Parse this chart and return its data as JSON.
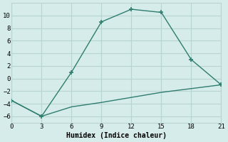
{
  "xlabel": "Humidex (Indice chaleur)",
  "line1_x": [
    0,
    3,
    6,
    9,
    12,
    15,
    18,
    21
  ],
  "line1_y": [
    -3.5,
    -6,
    1,
    9,
    11,
    10.5,
    3,
    -1
  ],
  "line2_x": [
    0,
    3,
    6,
    9,
    12,
    15,
    18,
    21
  ],
  "line2_y": [
    -3.5,
    -6,
    -4.5,
    -3.8,
    -3.0,
    -2.2,
    -1.6,
    -1
  ],
  "line_color": "#2e7d6e",
  "marker": "+",
  "markersize": 5,
  "markeredgewidth": 1.2,
  "linewidth": 1.0,
  "bg_color": "#d6ecea",
  "grid_color": "#b8d4d0",
  "xlim": [
    0,
    21
  ],
  "ylim": [
    -7,
    12
  ],
  "xticks": [
    0,
    3,
    6,
    9,
    12,
    15,
    18,
    21
  ],
  "yticks": [
    -6,
    -4,
    -2,
    0,
    2,
    4,
    6,
    8,
    10
  ]
}
